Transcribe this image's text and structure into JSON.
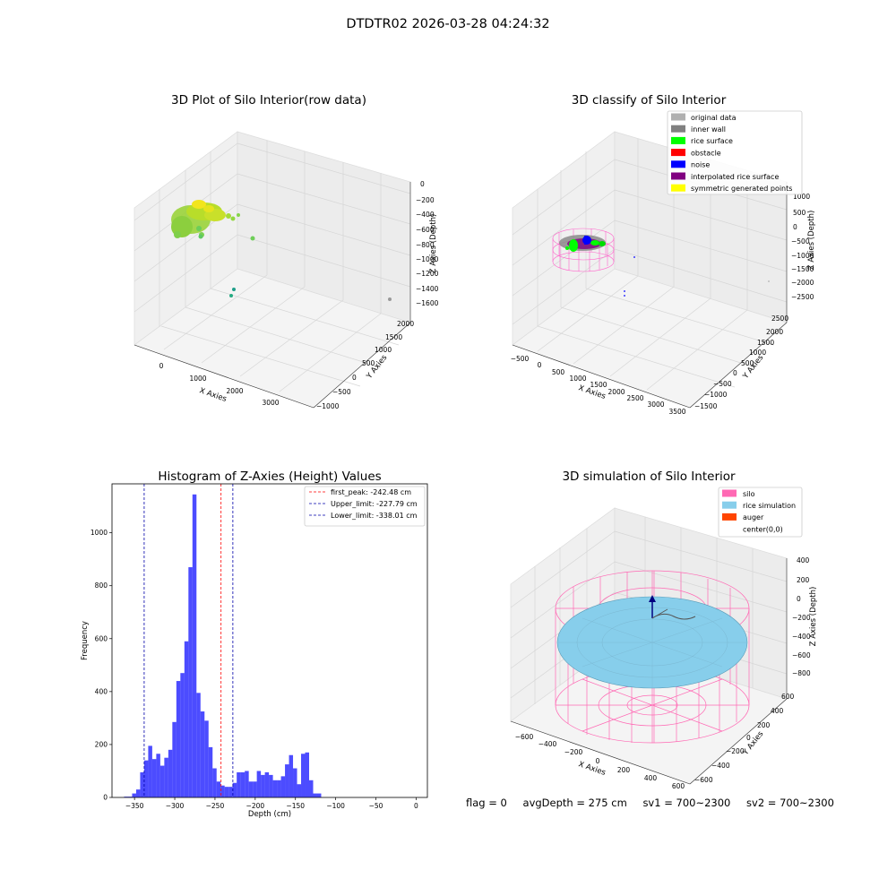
{
  "suptitle": "DTDTR02 2026-03-28 04:24:32",
  "panels": {
    "raw": {
      "title": "3D Plot of Silo Interior(row data)",
      "xlabel": "X Axies",
      "ylabel": "Y Axies",
      "zlabel": "Z Axies (Depth)",
      "xticks": [
        "0",
        "1000",
        "2000",
        "3000"
      ],
      "yticks": [
        "2000",
        "1500",
        "1000",
        "500",
        "0",
        "−500",
        "−1000"
      ],
      "zticks": [
        "0",
        "−200",
        "−400",
        "−600",
        "−800",
        "−1000",
        "−1200",
        "−1400",
        "−1600"
      ]
    },
    "classify": {
      "title": "3D classify of Silo Interior",
      "xlabel": "X Axies",
      "ylabel": "Y Axies",
      "zlabel": "Z Axies (Depth)",
      "xticks": [
        "−500",
        "0",
        "500",
        "1000",
        "1500",
        "2000",
        "2500",
        "3000",
        "3500"
      ],
      "yticks": [
        "2500",
        "2000",
        "1500",
        "1000",
        "500",
        "0",
        "−500",
        "−1000",
        "−1500"
      ],
      "zticks": [
        "1000",
        "500",
        "0",
        "−500",
        "−1000",
        "−1500",
        "−2000",
        "−2500"
      ],
      "legend": [
        {
          "label": "original data",
          "color": "#b0b0b0"
        },
        {
          "label": "inner wall",
          "color": "#808080"
        },
        {
          "label": "rice surface",
          "color": "#00ff00"
        },
        {
          "label": "obstacle",
          "color": "#ff0000"
        },
        {
          "label": "noise",
          "color": "#0000ff"
        },
        {
          "label": "interpolated rice surface",
          "color": "#800080"
        },
        {
          "label": "symmetric generated points",
          "color": "#ffff00"
        }
      ]
    },
    "simulation": {
      "title": "3D simulation of Silo Interior",
      "xlabel": "X Axies",
      "ylabel": "Y Axies",
      "zlabel": "Z Axies (Depth)",
      "xticks": [
        "−600",
        "−400",
        "−200",
        "0",
        "200",
        "400",
        "600"
      ],
      "yticks": [
        "600",
        "400",
        "200",
        "0",
        "−200",
        "−400",
        "−600"
      ],
      "zticks": [
        "400",
        "200",
        "0",
        "−200",
        "−400",
        "−600",
        "−800"
      ],
      "legend": [
        {
          "label": "silo",
          "color": "#ff69b4"
        },
        {
          "label": "rice simulation",
          "color": "#87ceeb"
        },
        {
          "label": "auger",
          "color": "#ff4500"
        },
        {
          "label": "center(0,0)",
          "color": ""
        }
      ]
    }
  },
  "chart_data": {
    "type": "bar",
    "title": "Histogram of Z-Axies (Height) Values",
    "xlabel": "Depth (cm)",
    "ylabel": "Frequency",
    "xlim": [
      -378,
      14
    ],
    "ylim": [
      0,
      1185
    ],
    "xticks": [
      -350,
      -300,
      -250,
      -200,
      -150,
      -100,
      -50,
      0
    ],
    "yticks": [
      0,
      200,
      400,
      600,
      800,
      1000
    ],
    "bar_color": "#0000ff",
    "bin_start": -363,
    "bin_width": 5,
    "values": [
      3,
      3,
      15,
      30,
      95,
      140,
      195,
      145,
      165,
      120,
      150,
      180,
      285,
      440,
      470,
      590,
      870,
      1145,
      395,
      325,
      290,
      190,
      110,
      60,
      45,
      40,
      40,
      55,
      95,
      95,
      100,
      60,
      60,
      100,
      85,
      95,
      85,
      65,
      65,
      80,
      125,
      160,
      110,
      50,
      165,
      170,
      65,
      15,
      15
    ],
    "lines": [
      {
        "label": "first_peak: -242.48 cm",
        "x": -242.48,
        "color": "#ff0000"
      },
      {
        "label": "Upper_limit: -227.79 cm",
        "x": -227.79,
        "color": "#0000aa"
      },
      {
        "label": "Lower_limit: -338.01 cm",
        "x": -338.01,
        "color": "#0000aa"
      }
    ],
    "legend_position": "upper right"
  },
  "footer": {
    "flag": "flag = 0",
    "avg": "avgDepth = 275 cm",
    "sv1": "sv1 = 700~2300",
    "sv2": "sv2 = 700~2300"
  }
}
